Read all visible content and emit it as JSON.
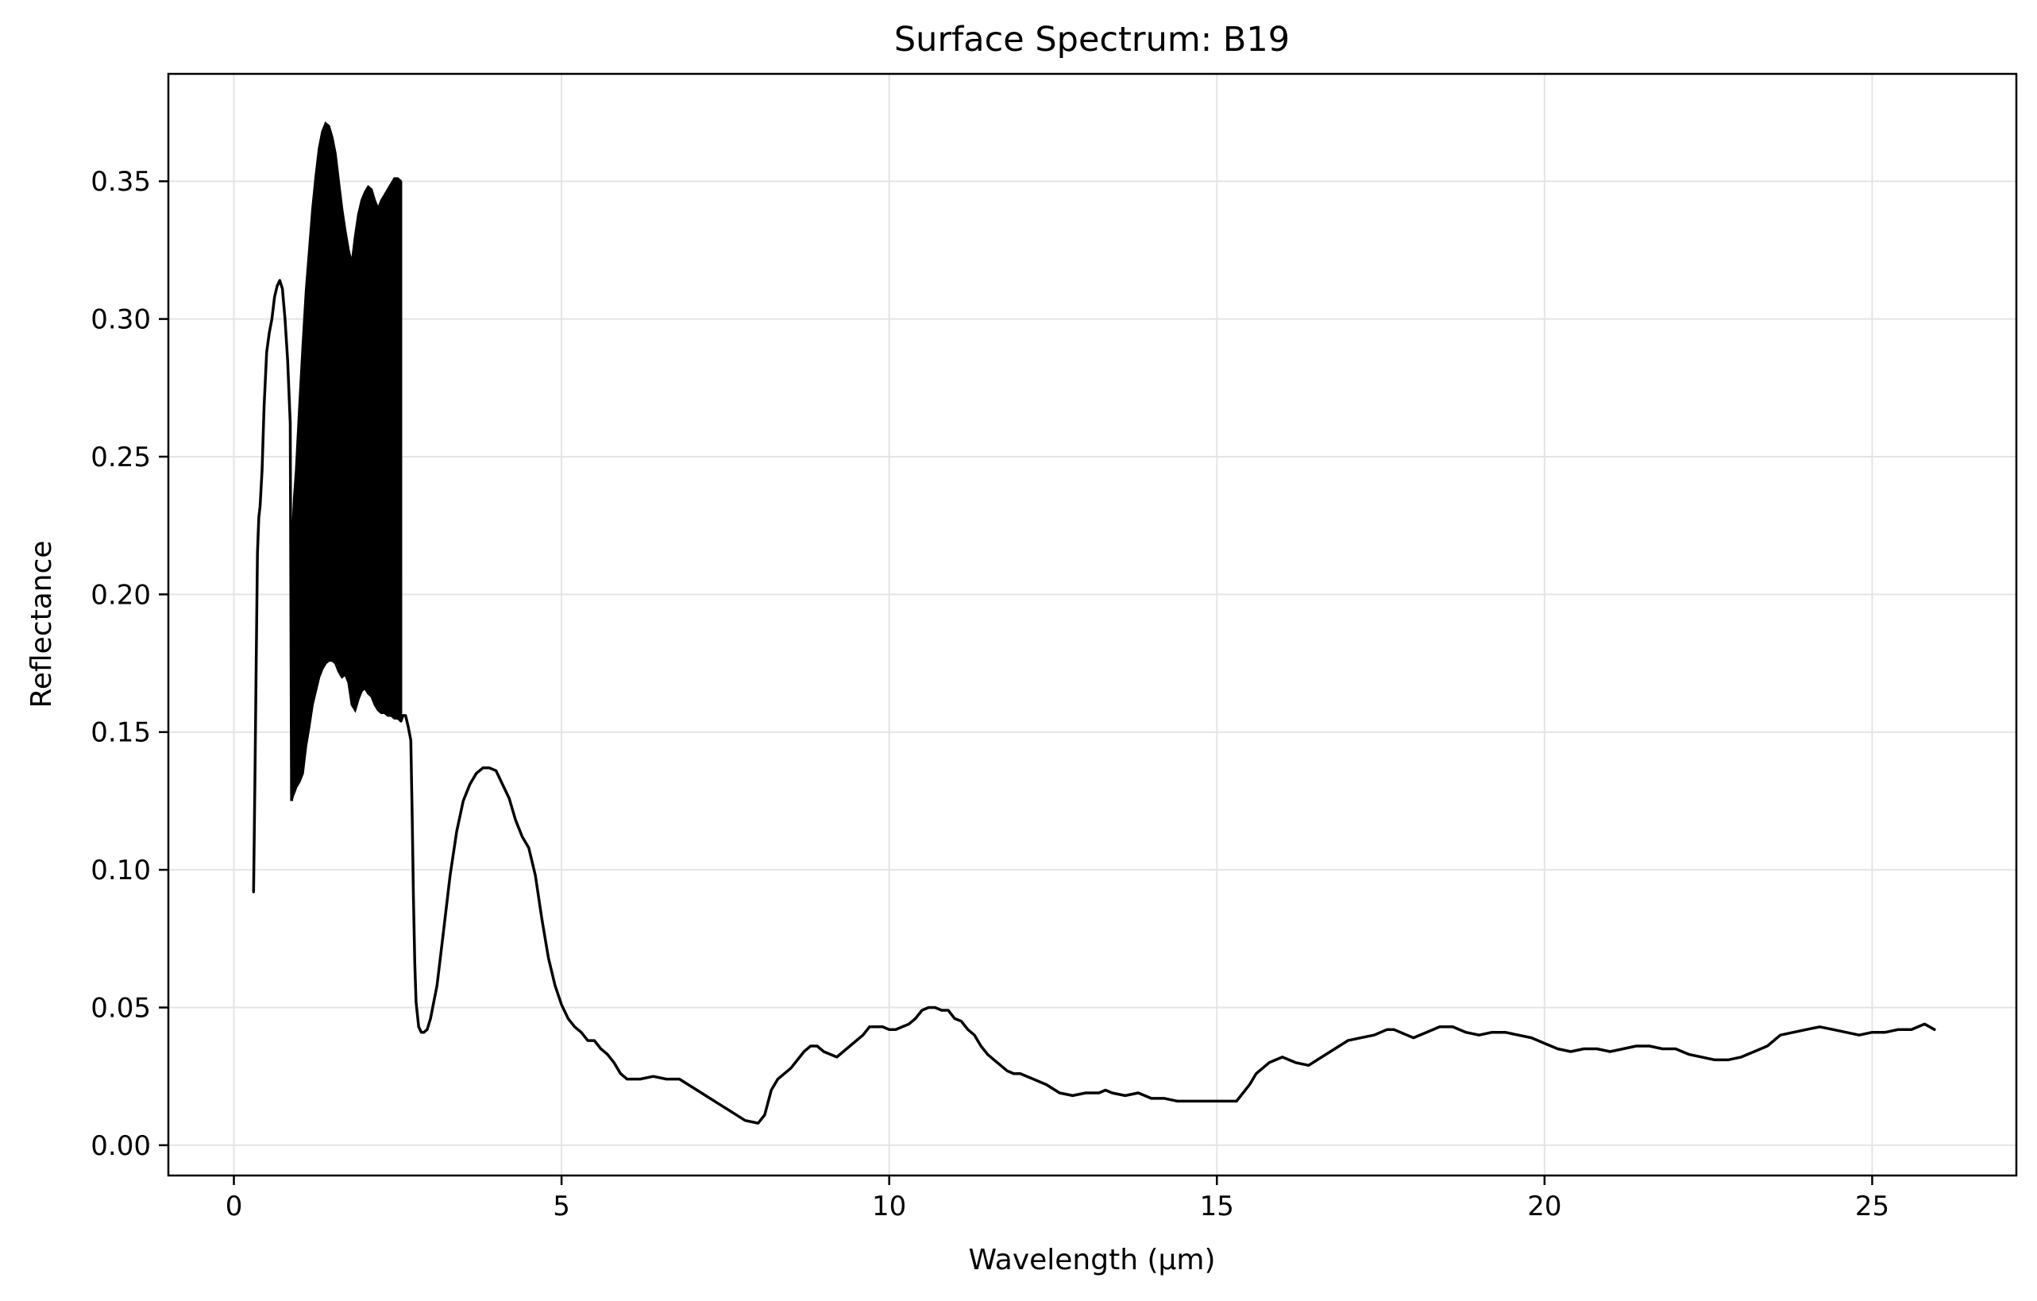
{
  "chart_data": {
    "type": "line",
    "title": "Surface Spectrum: B19",
    "xlabel": "Wavelength (µm)",
    "ylabel": "Reflectance",
    "xlim": [
      -1.0,
      27.2
    ],
    "ylim": [
      -0.011,
      0.389
    ],
    "xticks": [
      0,
      5,
      10,
      15,
      20,
      25
    ],
    "xtick_labels": [
      "0",
      "5",
      "10",
      "15",
      "20",
      "25"
    ],
    "yticks": [
      0.0,
      0.05,
      0.1,
      0.15,
      0.2,
      0.25,
      0.3,
      0.35
    ],
    "ytick_labels": [
      "0.00",
      "0.05",
      "0.10",
      "0.15",
      "0.20",
      "0.25",
      "0.30",
      "0.35"
    ],
    "grid": true,
    "line_color": "#000000",
    "series": [
      {
        "x": [
          0.3,
          0.32,
          0.34,
          0.36,
          0.38,
          0.4,
          0.43,
          0.46,
          0.5,
          0.54,
          0.58,
          0.62,
          0.66,
          0.7,
          0.74,
          0.78,
          0.82,
          0.86
        ],
        "y": [
          0.092,
          0.13,
          0.175,
          0.215,
          0.228,
          0.232,
          0.245,
          0.268,
          0.288,
          0.295,
          0.3,
          0.308,
          0.312,
          0.314,
          0.311,
          0.3,
          0.285,
          0.262
        ]
      },
      {
        "x": [
          0.88,
          0.9,
          0.92,
          0.95,
          1.0,
          1.05,
          1.1,
          1.15,
          1.2,
          1.25,
          1.3,
          1.35,
          1.4,
          1.45,
          1.5,
          1.55,
          1.6,
          1.65,
          1.7,
          1.75,
          1.8,
          1.85,
          1.9,
          1.95,
          2.0,
          2.05,
          2.1,
          2.15,
          2.2,
          2.25,
          2.3,
          2.35,
          2.4,
          2.45,
          2.5,
          2.55
        ],
        "y_low": [
          0.125,
          0.127,
          0.128,
          0.13,
          0.132,
          0.135,
          0.145,
          0.152,
          0.16,
          0.165,
          0.17,
          0.173,
          0.175,
          0.176,
          0.176,
          0.175,
          0.172,
          0.17,
          0.171,
          0.168,
          0.16,
          0.158,
          0.162,
          0.165,
          0.166,
          0.164,
          0.163,
          0.16,
          0.158,
          0.157,
          0.157,
          0.156,
          0.156,
          0.155,
          0.155,
          0.154
        ],
        "y_high": [
          0.215,
          0.225,
          0.235,
          0.245,
          0.268,
          0.29,
          0.31,
          0.325,
          0.34,
          0.352,
          0.362,
          0.368,
          0.371,
          0.37,
          0.366,
          0.36,
          0.35,
          0.34,
          0.332,
          0.325,
          0.32,
          0.33,
          0.338,
          0.343,
          0.346,
          0.348,
          0.347,
          0.343,
          0.34,
          0.343,
          0.345,
          0.347,
          0.349,
          0.351,
          0.351,
          0.35
        ]
      },
      {
        "x": [
          2.55,
          2.58,
          2.62,
          2.66,
          2.7,
          2.72,
          2.74,
          2.76,
          2.78,
          2.82,
          2.86,
          2.9,
          2.95,
          3.0,
          3.1,
          3.2,
          3.3,
          3.4,
          3.5,
          3.6,
          3.7,
          3.8,
          3.9,
          4.0,
          4.1,
          4.2,
          4.3,
          4.4,
          4.5,
          4.6,
          4.7,
          4.8,
          4.9,
          5.0,
          5.1,
          5.2,
          5.3,
          5.4,
          5.5,
          5.6,
          5.7,
          5.8,
          5.9,
          6.0,
          6.2,
          6.4,
          6.6,
          6.8,
          7.0,
          7.2,
          7.4,
          7.6,
          7.8,
          8.0,
          8.1,
          8.2,
          8.3,
          8.4,
          8.5,
          8.6,
          8.7,
          8.8,
          8.9,
          9.0,
          9.1,
          9.2,
          9.3,
          9.4,
          9.5,
          9.6,
          9.7,
          9.8,
          9.9,
          10.0,
          10.1,
          10.2,
          10.3,
          10.4,
          10.5,
          10.6,
          10.7,
          10.8,
          10.9,
          11.0,
          11.1,
          11.2,
          11.3,
          11.4,
          11.5,
          11.6,
          11.7,
          11.8,
          11.9,
          12.0,
          12.2,
          12.4,
          12.6,
          12.8,
          13.0,
          13.2,
          13.3,
          13.4,
          13.6,
          13.8,
          14.0,
          14.2,
          14.4,
          14.6,
          14.8,
          15.0,
          15.2,
          15.3,
          15.4,
          15.5,
          15.6,
          15.8,
          16.0,
          16.2,
          16.4,
          16.6,
          16.8,
          17.0,
          17.2,
          17.4,
          17.6,
          17.7,
          17.8,
          18.0,
          18.2,
          18.4,
          18.6,
          18.8,
          19.0,
          19.2,
          19.4,
          19.6,
          19.8,
          20.0,
          20.2,
          20.4,
          20.6,
          20.8,
          21.0,
          21.2,
          21.4,
          21.6,
          21.8,
          22.0,
          22.2,
          22.4,
          22.6,
          22.8,
          23.0,
          23.2,
          23.4,
          23.6,
          23.8,
          24.0,
          24.2,
          24.4,
          24.6,
          24.8,
          25.0,
          25.2,
          25.4,
          25.6,
          25.8,
          25.95
        ],
        "y": [
          0.154,
          0.156,
          0.156,
          0.152,
          0.147,
          0.12,
          0.09,
          0.066,
          0.052,
          0.043,
          0.041,
          0.041,
          0.042,
          0.046,
          0.058,
          0.078,
          0.098,
          0.114,
          0.125,
          0.131,
          0.135,
          0.137,
          0.137,
          0.136,
          0.131,
          0.126,
          0.118,
          0.112,
          0.108,
          0.098,
          0.082,
          0.068,
          0.058,
          0.051,
          0.046,
          0.043,
          0.041,
          0.038,
          0.038,
          0.035,
          0.033,
          0.03,
          0.026,
          0.024,
          0.024,
          0.025,
          0.024,
          0.024,
          0.021,
          0.018,
          0.015,
          0.012,
          0.009,
          0.008,
          0.011,
          0.02,
          0.024,
          0.026,
          0.028,
          0.031,
          0.034,
          0.036,
          0.036,
          0.034,
          0.033,
          0.032,
          0.034,
          0.036,
          0.038,
          0.04,
          0.043,
          0.043,
          0.043,
          0.042,
          0.042,
          0.043,
          0.044,
          0.046,
          0.049,
          0.05,
          0.05,
          0.049,
          0.049,
          0.046,
          0.045,
          0.042,
          0.04,
          0.036,
          0.033,
          0.031,
          0.029,
          0.027,
          0.026,
          0.026,
          0.024,
          0.022,
          0.019,
          0.018,
          0.019,
          0.019,
          0.02,
          0.019,
          0.018,
          0.019,
          0.017,
          0.017,
          0.016,
          0.016,
          0.016,
          0.016,
          0.016,
          0.016,
          0.019,
          0.022,
          0.026,
          0.03,
          0.032,
          0.03,
          0.029,
          0.032,
          0.035,
          0.038,
          0.039,
          0.04,
          0.042,
          0.042,
          0.041,
          0.039,
          0.041,
          0.043,
          0.043,
          0.041,
          0.04,
          0.041,
          0.041,
          0.04,
          0.039,
          0.037,
          0.035,
          0.034,
          0.035,
          0.035,
          0.034,
          0.035,
          0.036,
          0.036,
          0.035,
          0.035,
          0.033,
          0.032,
          0.031,
          0.031,
          0.032,
          0.034,
          0.036,
          0.04,
          0.041,
          0.042,
          0.043,
          0.042,
          0.041,
          0.04,
          0.041,
          0.041,
          0.042,
          0.042,
          0.044,
          0.042
        ]
      }
    ]
  }
}
